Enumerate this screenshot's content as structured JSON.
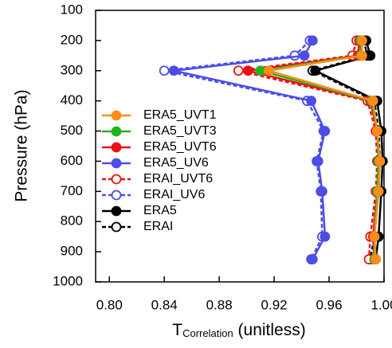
{
  "chart_data": {
    "type": "line",
    "x_label": "T",
    "x_label_sub": "Correlation",
    "x_label_rest": " (unitless)",
    "y_label": "Pressure (hPa)",
    "y": [
      200,
      250,
      300,
      400,
      500,
      600,
      700,
      850,
      925
    ],
    "xlim": [
      0.79,
      1.0
    ],
    "ylim": [
      1000,
      100
    ],
    "xticks": [
      {
        "value": 0.8,
        "label": "0.80"
      },
      0.84,
      0.88,
      0.92,
      0.96,
      {
        "value": 1.0,
        "label": "1.00"
      }
    ],
    "yticks": [
      100,
      200,
      300,
      400,
      500,
      600,
      700,
      800,
      900,
      1000
    ],
    "legend": "left",
    "series": [
      {
        "name": "ERA5_UVT1",
        "color": "#ff8c1a",
        "dashed": false,
        "marker": "filled",
        "values": [
          0.984,
          0.984,
          0.916,
          0.992,
          0.995,
          0.997,
          0.996,
          0.993,
          0.994
        ]
      },
      {
        "name": "ERA5_UVT3",
        "color": "#1fb51f",
        "dashed": false,
        "marker": "filled",
        "values": [
          0.983,
          0.983,
          0.91,
          0.991,
          0.995,
          0.996,
          0.995,
          0.993,
          0.993
        ]
      },
      {
        "name": "ERA5_UVT6",
        "color": "#ee1111",
        "dashed": false,
        "marker": "filled",
        "values": [
          0.982,
          0.981,
          0.901,
          0.99,
          0.995,
          0.996,
          0.995,
          0.992,
          0.993
        ]
      },
      {
        "name": "ERA5_UV6",
        "color": "#4d4de6",
        "dashed": false,
        "marker": "filled",
        "values": [
          0.948,
          0.942,
          0.847,
          0.947,
          0.957,
          0.952,
          0.955,
          0.957,
          0.948
        ]
      },
      {
        "name": "ERAI_UVT6",
        "color": "#ee1111",
        "dashed": true,
        "marker": "open",
        "values": [
          0.98,
          0.977,
          0.894,
          0.988,
          0.994,
          0.995,
          0.994,
          0.99,
          0.989
        ]
      },
      {
        "name": "ERAI_UV6",
        "color": "#4d4de6",
        "dashed": true,
        "marker": "open",
        "values": [
          0.946,
          0.935,
          0.84,
          0.944,
          0.956,
          0.951,
          0.954,
          0.955,
          0.947
        ]
      },
      {
        "name": "ERA5",
        "color": "#000000",
        "dashed": false,
        "marker": "filled",
        "values": [
          0.987,
          0.99,
          0.95,
          0.995,
          0.998,
          0.999,
          0.998,
          0.996,
          0.994
        ]
      },
      {
        "name": "ERAI",
        "color": "#000000",
        "dashed": true,
        "marker": "open",
        "values": [
          0.985,
          0.988,
          0.948,
          0.993,
          0.996,
          0.997,
          0.996,
          0.993,
          0.99
        ]
      }
    ]
  }
}
